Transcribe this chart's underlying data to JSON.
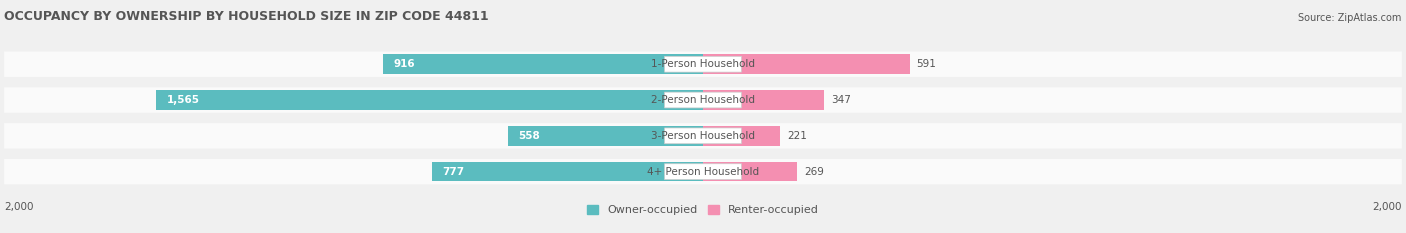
{
  "title": "OCCUPANCY BY OWNERSHIP BY HOUSEHOLD SIZE IN ZIP CODE 44811",
  "source": "Source: ZipAtlas.com",
  "categories": [
    "1-Person Household",
    "2-Person Household",
    "3-Person Household",
    "4+ Person Household"
  ],
  "owner_values": [
    916,
    1565,
    558,
    777
  ],
  "renter_values": [
    591,
    347,
    221,
    269
  ],
  "owner_color": "#5bbcbf",
  "renter_color": "#f48fb1",
  "max_scale": 2000,
  "bg_color": "#f0f0f0",
  "row_bg_color": "#fafafa",
  "label_bg_color": "#ffffff",
  "title_color": "#555555",
  "text_color": "#555555",
  "legend_owner": "Owner-occupied",
  "legend_renter": "Renter-occupied"
}
